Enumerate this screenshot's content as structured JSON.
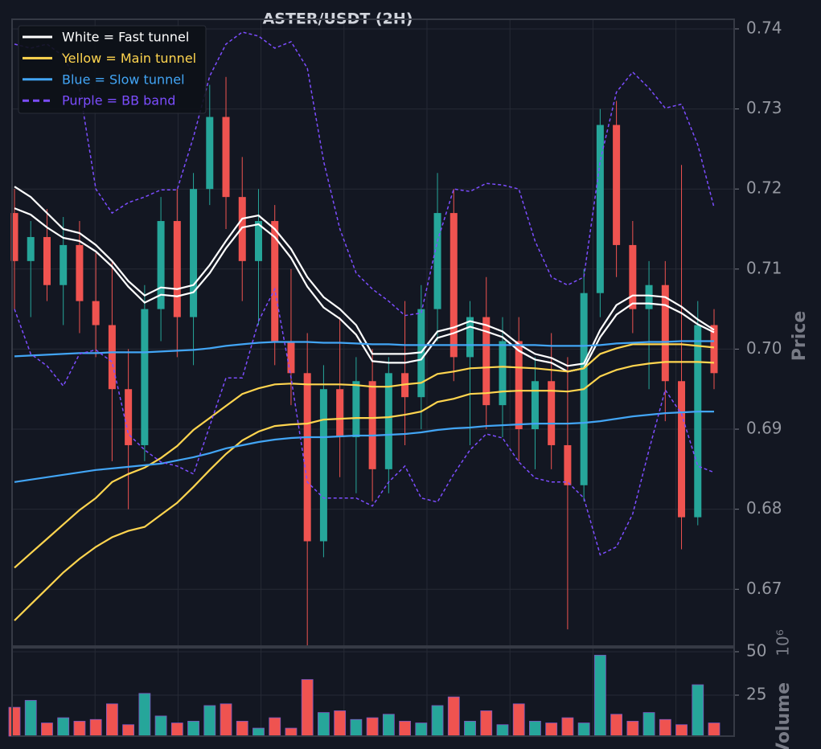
{
  "chart_data": [
    {
      "type": "candlestick",
      "title": "ASTER/USDT (2H)",
      "ylabel": "Price",
      "ylim": [
        0.6629,
        0.7412
      ],
      "yticks": [
        0.67,
        0.68,
        0.69,
        {
          "value": 0.7,
          "label": "0.70"
        },
        0.71,
        0.72,
        0.73,
        0.74
      ],
      "grid": true,
      "legend": "upper left",
      "up_color": "#26a69a",
      "down_color": "#ef5350",
      "open": [
        0.717,
        0.711,
        0.714,
        0.708,
        0.713,
        0.706,
        0.703,
        0.695,
        0.688,
        0.705,
        0.716,
        0.704,
        0.72,
        0.729,
        0.719,
        0.711,
        0.716,
        0.701,
        0.697,
        0.676,
        0.695,
        0.689,
        0.696,
        0.685,
        0.697,
        0.694,
        0.705,
        0.717,
        0.699,
        0.704,
        0.693,
        0.701,
        0.69,
        0.696,
        0.688,
        0.683,
        0.707,
        0.728,
        0.713,
        0.705,
        0.708,
        0.696,
        0.679,
        0.703
      ],
      "high": [
        0.72,
        0.716,
        0.7175,
        0.7165,
        0.716,
        0.712,
        0.711,
        0.7,
        0.708,
        0.719,
        0.72,
        0.722,
        0.733,
        0.734,
        0.724,
        0.72,
        0.718,
        0.71,
        0.702,
        0.698,
        0.704,
        0.699,
        0.7,
        0.699,
        0.706,
        0.708,
        0.722,
        0.72,
        0.706,
        0.709,
        0.704,
        0.704,
        0.699,
        0.702,
        0.699,
        0.71,
        0.73,
        0.731,
        0.716,
        0.711,
        0.711,
        0.723,
        0.706,
        0.705
      ],
      "low": [
        0.705,
        0.704,
        0.706,
        0.703,
        0.702,
        0.699,
        0.686,
        0.68,
        0.686,
        0.701,
        0.699,
        0.698,
        0.718,
        0.715,
        0.706,
        0.703,
        0.698,
        0.693,
        0.663,
        0.674,
        0.684,
        0.682,
        0.681,
        0.682,
        0.688,
        0.69,
        0.701,
        0.696,
        0.688,
        0.69,
        0.689,
        0.686,
        0.685,
        0.685,
        0.665,
        0.681,
        0.704,
        0.709,
        0.702,
        0.695,
        0.691,
        0.675,
        0.678,
        0.695
      ],
      "close": [
        0.711,
        0.714,
        0.708,
        0.713,
        0.706,
        0.703,
        0.695,
        0.688,
        0.705,
        0.716,
        0.704,
        0.72,
        0.729,
        0.719,
        0.711,
        0.716,
        0.701,
        0.697,
        0.676,
        0.695,
        0.689,
        0.696,
        0.685,
        0.697,
        0.694,
        0.705,
        0.717,
        0.699,
        0.704,
        0.693,
        0.701,
        0.69,
        0.696,
        0.688,
        0.683,
        0.707,
        0.728,
        0.713,
        0.705,
        0.708,
        0.696,
        0.679,
        0.703,
        0.697
      ],
      "series": [
        {
          "name": "White = Fast tunnel",
          "color": "#ffffff",
          "dashed": false,
          "upper": [
            0.7203,
            0.719,
            0.717,
            0.715,
            0.7145,
            0.713,
            0.711,
            0.7085,
            0.7067,
            0.7077,
            0.7075,
            0.708,
            0.7105,
            0.7135,
            0.7163,
            0.7167,
            0.715,
            0.7125,
            0.709,
            0.7065,
            0.705,
            0.703,
            0.6994,
            0.6994,
            0.6994,
            0.6996,
            0.7022,
            0.7027,
            0.7035,
            0.703,
            0.7022,
            0.7006,
            0.6994,
            0.6989,
            0.6979,
            0.6982,
            0.7024,
            0.7055,
            0.7067,
            0.7067,
            0.7065,
            0.7053,
            0.7037,
            0.7024
          ],
          "lower": [
            0.7176,
            0.7168,
            0.7152,
            0.7139,
            0.7135,
            0.7122,
            0.7103,
            0.7078,
            0.7058,
            0.7068,
            0.7066,
            0.7071,
            0.7095,
            0.7126,
            0.7152,
            0.7156,
            0.714,
            0.7114,
            0.7078,
            0.7052,
            0.7038,
            0.7018,
            0.6985,
            0.6983,
            0.6983,
            0.6987,
            0.7014,
            0.702,
            0.7028,
            0.7022,
            0.7015,
            0.6998,
            0.6987,
            0.6983,
            0.6972,
            0.6976,
            0.7015,
            0.7043,
            0.7057,
            0.7057,
            0.7055,
            0.7045,
            0.7031,
            0.7021
          ]
        },
        {
          "name": "Yellow = Main tunnel",
          "color": "#ffd54f",
          "dashed": false,
          "upper": [
            0.6727,
            0.6745,
            0.6763,
            0.6781,
            0.6799,
            0.6814,
            0.6834,
            0.6844,
            0.6852,
            0.6864,
            0.6879,
            0.6899,
            0.6914,
            0.6929,
            0.6944,
            0.6951,
            0.6956,
            0.6957,
            0.6956,
            0.6956,
            0.6956,
            0.6955,
            0.6953,
            0.6953,
            0.6956,
            0.6958,
            0.6969,
            0.6972,
            0.6976,
            0.6977,
            0.6978,
            0.6977,
            0.6976,
            0.6974,
            0.6972,
            0.6976,
            0.6994,
            0.7001,
            0.7006,
            0.7006,
            0.7006,
            0.7006,
            0.7004,
            0.7002
          ],
          "lower": [
            0.6661,
            0.6681,
            0.6701,
            0.6721,
            0.6738,
            0.6753,
            0.6765,
            0.6773,
            0.6778,
            0.6793,
            0.6808,
            0.6828,
            0.6849,
            0.6869,
            0.6886,
            0.6897,
            0.6904,
            0.6906,
            0.6907,
            0.6912,
            0.6913,
            0.6914,
            0.6914,
            0.6915,
            0.6918,
            0.6922,
            0.6934,
            0.6938,
            0.6944,
            0.6945,
            0.6947,
            0.6948,
            0.6948,
            0.6948,
            0.6947,
            0.695,
            0.6966,
            0.6974,
            0.6979,
            0.6982,
            0.6984,
            0.6984,
            0.6984,
            0.6983
          ]
        },
        {
          "name": "Blue = Slow tunnel",
          "color": "#42a5f5",
          "dashed": false,
          "upper": [
            0.6991,
            0.6992,
            0.6993,
            0.6994,
            0.6995,
            0.6995,
            0.6996,
            0.6996,
            0.6996,
            0.6997,
            0.6998,
            0.6999,
            0.7001,
            0.7004,
            0.7006,
            0.7008,
            0.7009,
            0.7009,
            0.7009,
            0.7008,
            0.7008,
            0.7007,
            0.7006,
            0.7006,
            0.7005,
            0.7005,
            0.7005,
            0.7005,
            0.7005,
            0.7005,
            0.7005,
            0.7005,
            0.7005,
            0.7004,
            0.7004,
            0.7004,
            0.7005,
            0.7007,
            0.7008,
            0.7009,
            0.7009,
            0.701,
            0.701,
            0.701
          ],
          "lower": [
            0.6834,
            0.6837,
            0.684,
            0.6843,
            0.6846,
            0.6849,
            0.6851,
            0.6853,
            0.6855,
            0.6857,
            0.6861,
            0.6865,
            0.687,
            0.6876,
            0.688,
            0.6884,
            0.6887,
            0.6889,
            0.689,
            0.689,
            0.6891,
            0.6892,
            0.6892,
            0.6893,
            0.6894,
            0.6896,
            0.6899,
            0.6901,
            0.6902,
            0.6904,
            0.6905,
            0.6906,
            0.6907,
            0.6907,
            0.6907,
            0.6908,
            0.691,
            0.6913,
            0.6916,
            0.6918,
            0.692,
            0.6921,
            0.6922,
            0.6922
          ]
        },
        {
          "name": "Purple = BB band",
          "color": "#7c4dff",
          "dashed": true,
          "upper": [
            0.7381,
            0.7376,
            0.7381,
            0.7366,
            0.7326,
            0.72,
            0.717,
            0.7183,
            0.719,
            0.7199,
            0.7199,
            0.7265,
            0.7341,
            0.7381,
            0.7396,
            0.7391,
            0.7376,
            0.7384,
            0.7351,
            0.7235,
            0.715,
            0.7095,
            0.7075,
            0.706,
            0.7042,
            0.7045,
            0.7135,
            0.72,
            0.7197,
            0.7207,
            0.7205,
            0.72,
            0.7135,
            0.709,
            0.708,
            0.709,
            0.7235,
            0.7321,
            0.7346,
            0.7326,
            0.7301,
            0.7306,
            0.7255,
            0.7177
          ],
          "lower": [
            0.705,
            0.6994,
            0.6979,
            0.6954,
            0.6994,
            0.6999,
            0.6984,
            0.6894,
            0.6874,
            0.6859,
            0.6854,
            0.6844,
            0.6904,
            0.6964,
            0.6964,
            0.7035,
            0.7075,
            0.6964,
            0.6834,
            0.6814,
            0.6814,
            0.6814,
            0.6804,
            0.6834,
            0.6854,
            0.6814,
            0.6809,
            0.6844,
            0.6874,
            0.6894,
            0.6889,
            0.6859,
            0.6839,
            0.6834,
            0.6834,
            0.6814,
            0.6743,
            0.6753,
            0.6794,
            0.6874,
            0.6949,
            0.6919,
            0.6854,
            0.6846
          ]
        }
      ]
    },
    {
      "type": "bar",
      "ylabel": "Volume",
      "scale_label": "10⁶",
      "ylim": [
        1.4,
        52.3
      ],
      "yticks": [
        25,
        50
      ],
      "values": [
        18,
        22,
        9,
        12,
        10,
        11,
        20,
        8,
        26,
        13,
        9,
        10,
        19,
        20,
        10,
        6,
        12,
        6,
        34,
        15,
        16,
        11,
        12,
        14,
        10,
        9,
        19,
        24,
        10,
        16,
        8,
        20,
        10,
        9,
        12,
        9,
        48,
        14,
        10,
        15,
        11,
        8,
        31,
        9
      ]
    }
  ]
}
